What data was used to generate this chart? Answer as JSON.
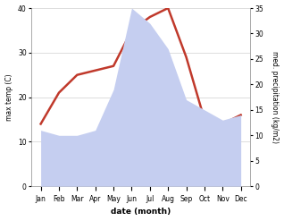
{
  "months": [
    "Jan",
    "Feb",
    "Mar",
    "Apr",
    "May",
    "Jun",
    "Jul",
    "Aug",
    "Sep",
    "Oct",
    "Nov",
    "Dec"
  ],
  "x": [
    0,
    1,
    2,
    3,
    4,
    5,
    6,
    7,
    8,
    9,
    10,
    11
  ],
  "temp": [
    14,
    21,
    25,
    26,
    27,
    35,
    38,
    40,
    29,
    15,
    14,
    16
  ],
  "precip": [
    11,
    10,
    10,
    11,
    19,
    35,
    32,
    27,
    17,
    15,
    13,
    14
  ],
  "temp_color": "#c0392b",
  "precip_fill_color": "#c5cef0",
  "xlabel": "date (month)",
  "ylabel_left": "max temp (C)",
  "ylabel_right": "med. precipitation (kg/m2)",
  "ylim_left": [
    0,
    40
  ],
  "ylim_right": [
    0,
    35
  ],
  "yticks_left": [
    0,
    10,
    20,
    30,
    40
  ],
  "yticks_right": [
    0,
    5,
    10,
    15,
    20,
    25,
    30,
    35
  ],
  "bg_color": "#ffffff",
  "grid_color": "#d0d0d0",
  "temp_linewidth": 1.8
}
